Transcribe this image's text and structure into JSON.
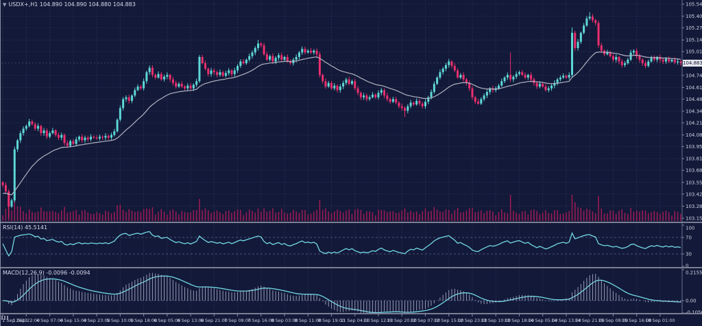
{
  "window": {
    "symbol_period": "USDX+,H1",
    "ohlc": "104.890 104.890 104.880 104.883",
    "dropdown_glyph": "▼"
  },
  "colors": {
    "background": "#131938",
    "grid": "#2d3659",
    "level_line": "#4b5480",
    "bull": "#5ed8d6",
    "bear": "#ea2f6e",
    "volume": "#a01b57",
    "ma_line": "#b2b4c2",
    "indicator_line": "#72d9e6",
    "macd_histogram": "#aeb4cd",
    "axis_text": "#ccd1e3",
    "tag_bg": "#e4e6ef",
    "tag_text": "#14172e",
    "separator": "#7a7f93"
  },
  "price_axis": {
    "current": "104.883",
    "labels": [
      "105.540",
      "105.405",
      "105.275",
      "105.140",
      "105.010",
      "104.745",
      "104.610",
      "104.480",
      "104.345",
      "104.215",
      "104.080",
      "103.950",
      "103.815",
      "103.685",
      "103.550",
      "103.420",
      "103.285",
      "103.150"
    ]
  },
  "time_axis": {
    "labels": [
      "1 Sep 2023",
      "1 Sep 22:00",
      "4 Sep 07:00",
      "4 Sep 15:00",
      "4 Sep 23:00",
      "5 Sep 10:00",
      "5 Sep 18:00",
      "6 Sep 05:00",
      "6 Sep 13:00",
      "6 Sep 21:00",
      "7 Sep 08:00",
      "7 Sep 16:00",
      "8 Sep 03:00",
      "8 Sep 11:00",
      "8 Sep 19:00",
      "11 Sep 04:00",
      "11 Sep 12:00",
      "11 Sep 20:00",
      "12 Sep 07:00",
      "12 Sep 15:00",
      "12 Sep 23:00",
      "13 Sep 10:00",
      "13 Sep 18:00",
      "14 Sep 05:00",
      "14 Sep 13:00",
      "14 Sep 21:00",
      "15 Sep 08:00",
      "15 Sep 16:00",
      "18 Sep 01:00"
    ]
  },
  "rsi_panel": {
    "label": "RSI(14) 45.5141",
    "axis_labels": [
      "100",
      "70",
      "30",
      "0"
    ],
    "levels": [
      70,
      30
    ]
  },
  "macd_panel": {
    "label": "MACD(12,26,9) -0.0096 -0.0094",
    "axis_labels": [
      "0.2155",
      "0.00",
      "-0.1056"
    ],
    "max": 0.2155,
    "min": -0.1056
  },
  "chart_data": {
    "type": "candlestick",
    "symbol": "USDX+",
    "timeframe": "H1",
    "price_range": [
      103.15,
      105.54
    ],
    "indicators": [
      {
        "name": "RSI",
        "period": 14,
        "value": 45.5141
      },
      {
        "name": "MACD",
        "fast": 12,
        "slow": 26,
        "signal": 9,
        "values": [
          -0.0096,
          -0.0094
        ]
      },
      {
        "name": "MA",
        "period": 24
      }
    ],
    "first_open": 103.55,
    "closes": [
      103.52,
      103.45,
      103.28,
      103.35,
      103.92,
      104.02,
      104.1,
      104.15,
      104.18,
      104.23,
      104.2,
      104.15,
      104.18,
      104.1,
      104.13,
      104.06,
      104.1,
      104.13,
      104.08,
      104.05,
      104.08,
      103.99,
      103.96,
      104.01,
      103.98,
      104.03,
      104.06,
      104.02,
      104.05,
      104.03,
      104.06,
      104.05,
      104.04,
      104.06,
      104.05,
      104.07,
      104.05,
      104.08,
      104.12,
      104.25,
      104.38,
      104.48,
      104.5,
      104.46,
      104.52,
      104.58,
      104.62,
      104.6,
      104.68,
      104.78,
      104.83,
      104.75,
      104.72,
      104.76,
      104.7,
      104.73,
      104.75,
      104.7,
      104.66,
      104.62,
      104.65,
      104.62,
      104.6,
      104.63,
      104.6,
      104.64,
      104.68,
      104.95,
      104.88,
      104.82,
      104.76,
      104.8,
      104.78,
      104.75,
      104.78,
      104.74,
      104.77,
      104.8,
      104.76,
      104.8,
      104.85,
      104.9,
      104.88,
      104.92,
      104.96,
      105.0,
      105.05,
      105.1,
      105.08,
      104.98,
      104.92,
      104.96,
      104.9,
      104.94,
      104.97,
      104.92,
      104.95,
      104.9,
      104.88,
      104.92,
      104.95,
      105.0,
      105.04,
      105.0,
      105.02,
      105.0,
      105.02,
      104.98,
      104.75,
      104.68,
      104.62,
      104.66,
      104.6,
      104.63,
      104.58,
      104.62,
      104.66,
      104.7,
      104.65,
      104.68,
      104.6,
      104.55,
      104.5,
      104.52,
      104.48,
      104.5,
      104.53,
      104.5,
      104.55,
      104.58,
      104.52,
      104.48,
      104.45,
      104.48,
      104.44,
      104.4,
      104.38,
      104.35,
      104.4,
      104.44,
      104.42,
      104.46,
      104.43,
      104.4,
      104.45,
      104.5,
      104.56,
      104.65,
      104.72,
      104.78,
      104.82,
      104.86,
      104.9,
      104.85,
      104.8,
      104.72,
      104.75,
      104.7,
      104.66,
      104.6,
      104.5,
      104.45,
      104.43,
      104.48,
      104.52,
      104.56,
      104.6,
      104.58,
      104.6,
      104.63,
      104.68,
      104.72,
      104.75,
      104.7,
      104.73,
      104.76,
      104.78,
      104.75,
      104.72,
      104.75,
      104.7,
      104.66,
      104.62,
      104.65,
      104.62,
      104.58,
      104.6,
      104.63,
      104.66,
      104.7,
      104.72,
      104.74,
      104.72,
      104.75,
      105.22,
      105.05,
      105.12,
      105.22,
      105.3,
      105.38,
      105.4,
      105.36,
      105.33,
      105.08,
      105.02,
      104.98,
      105.0,
      104.96,
      104.92,
      104.95,
      104.9,
      104.86,
      104.88,
      104.92,
      105.0,
      105.02,
      104.96,
      104.92,
      104.88,
      104.85,
      104.9,
      104.94,
      104.92,
      104.95,
      104.92,
      104.9,
      104.93,
      104.9,
      104.92,
      104.89,
      104.9,
      104.883
    ],
    "extremes": {
      "2": {
        "low": 103.16
      },
      "87": {
        "high": 105.14
      },
      "137": {
        "low": 104.28
      },
      "173": {
        "high": 105.0
      },
      "194": {
        "high": 105.28
      },
      "200": {
        "high": 105.45
      }
    }
  }
}
